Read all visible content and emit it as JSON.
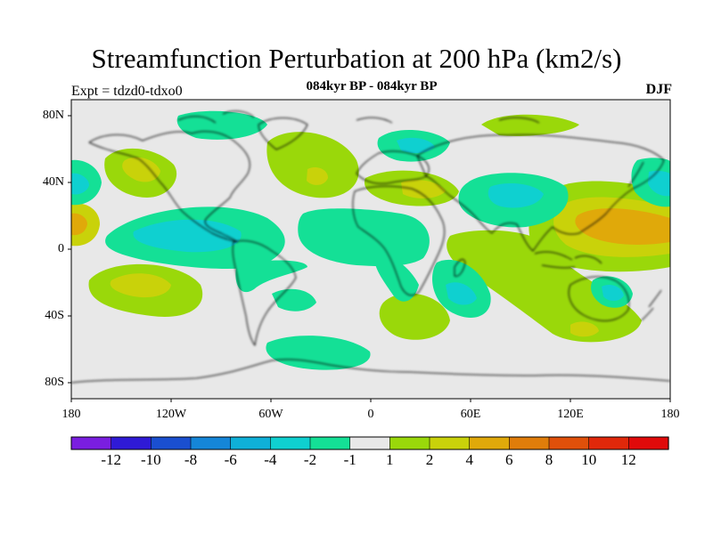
{
  "title": "Streamfunction Perturbation at 200 hPa (km2/s)",
  "subtitle": "084kyr BP - 084kyr BP",
  "left_label": "Expt = tdzd0-tdxo0",
  "right_label": "DJF",
  "lat_ticks": [
    "80N",
    "40N",
    "0",
    "40S",
    "80S"
  ],
  "lon_ticks": [
    "180",
    "120W",
    "60W",
    "0",
    "60E",
    "120E",
    "180"
  ],
  "colorbar": {
    "colors": [
      "#7a1ee0",
      "#2f1ad6",
      "#1a4fd0",
      "#1586d8",
      "#0fb0d8",
      "#0fd0d0",
      "#14e096",
      "#e8e8e8",
      "#9ad80a",
      "#c9d20a",
      "#e0a90a",
      "#e07d0a",
      "#e0500a",
      "#e0280a",
      "#e00a0a"
    ],
    "labels": [
      "-12",
      "-10",
      "-8",
      "-6",
      "-4",
      "-2",
      "-1",
      "1",
      "2",
      "4",
      "6",
      "8",
      "10",
      "12"
    ]
  }
}
